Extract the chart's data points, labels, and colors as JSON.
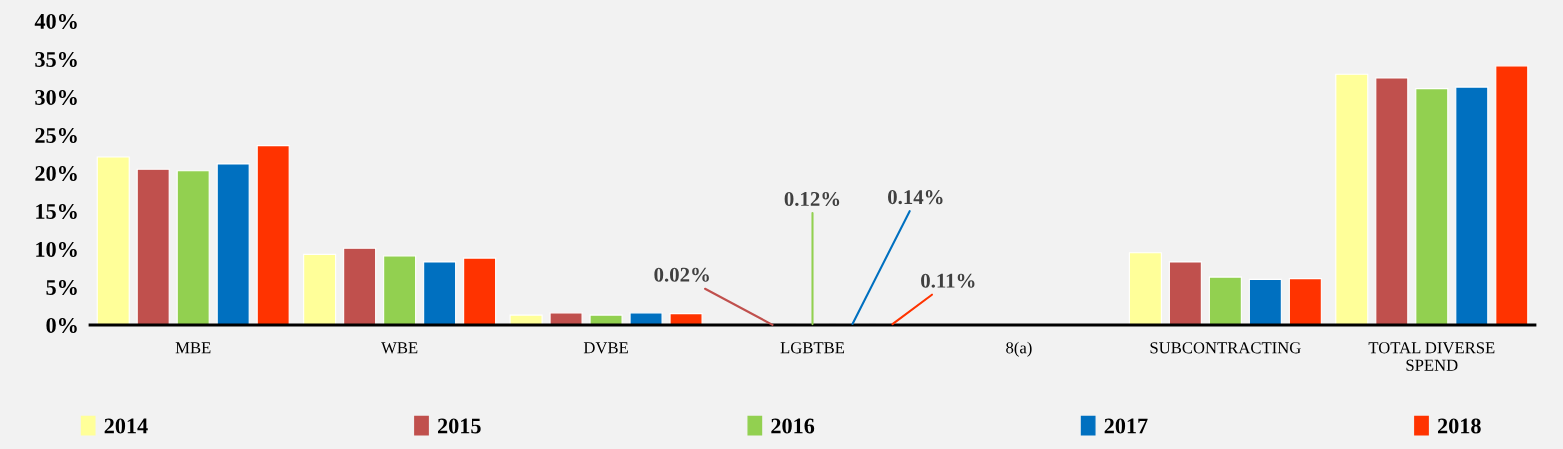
{
  "chart_data": {
    "type": "bar",
    "categories": [
      "MBE",
      "WBE",
      "DVBE",
      "LGBTBE",
      "8(a)",
      "SUBCONTRACTING",
      "TOTAL DIVERSE\nSPEND"
    ],
    "series": [
      {
        "name": "2014",
        "color": "#ffff99",
        "values": [
          22.1,
          9.3,
          1.3,
          null,
          null,
          9.5,
          33.0
        ]
      },
      {
        "name": "2015",
        "color": "#c0504d",
        "values": [
          20.5,
          10.1,
          1.6,
          0.02,
          null,
          8.3,
          32.5
        ],
        "value_labels": [
          null,
          null,
          null,
          "0.02%",
          null,
          null,
          null
        ]
      },
      {
        "name": "2016",
        "color": "#92d050",
        "values": [
          20.3,
          9.1,
          1.3,
          0.12,
          null,
          6.3,
          31.1
        ],
        "value_labels": [
          null,
          null,
          null,
          "0.12%",
          null,
          null,
          null
        ]
      },
      {
        "name": "2017",
        "color": "#0070c0",
        "values": [
          21.2,
          8.3,
          1.6,
          0.14,
          null,
          6.0,
          31.3
        ],
        "value_labels": [
          null,
          null,
          null,
          "0.14%",
          null,
          null,
          null
        ]
      },
      {
        "name": "2018",
        "color": "#ff3300",
        "values": [
          23.6,
          8.8,
          1.5,
          0.11,
          null,
          6.1,
          34.1
        ],
        "value_labels": [
          null,
          null,
          null,
          "0.11%",
          null,
          null,
          null
        ]
      }
    ],
    "ylim": [
      0,
      40
    ],
    "yticks": [
      {
        "value": 0,
        "label": "0%"
      },
      {
        "value": 5,
        "label": "5%"
      },
      {
        "value": 10,
        "label": "10%"
      },
      {
        "value": 15,
        "label": "15%"
      },
      {
        "value": 20,
        "label": "20%"
      },
      {
        "value": 25,
        "label": "25%"
      },
      {
        "value": 30,
        "label": "30%"
      },
      {
        "value": 35,
        "label": "35%"
      },
      {
        "value": 40,
        "label": "40%"
      }
    ],
    "grid": false,
    "legend": "bottom"
  }
}
